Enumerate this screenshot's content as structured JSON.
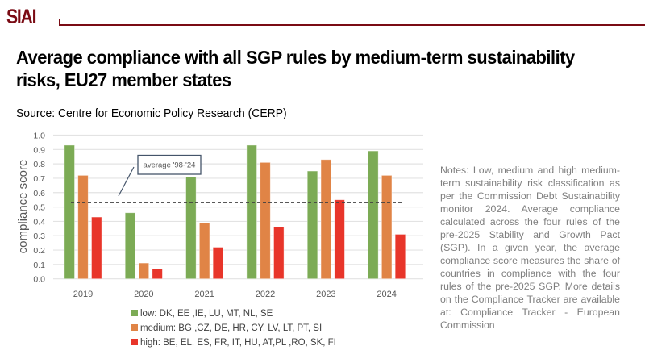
{
  "header": {
    "logo": "SIAI"
  },
  "title": "Average compliance with all SGP rules by medium-term sustainability risks, EU27 member states",
  "source": "Source: Centre for Economic Policy Research (CERP)",
  "notes": "Notes: Low, medium and high medium-term sustainability risk classification as per the Commission Debt Sustainability monitor 2024. Average compliance calculated across the four rules of the pre-2025 Stability and Growth Pact (SGP). In a given year, the average compliance score measures the share of countries in compliance with the four rules of the pre-2025 SGP. More details on the Compliance Tracker are available at: Compliance Tracker - European Commission",
  "chart_data": {
    "type": "bar",
    "title": "",
    "xlabel": "",
    "ylabel": "compliance score",
    "ylim": [
      0,
      1.0
    ],
    "yticks": [
      "0.0",
      "0.1",
      "0.2",
      "0.3",
      "0.4",
      "0.5",
      "0.6",
      "0.7",
      "0.8",
      "0.9",
      "1.0"
    ],
    "grid": true,
    "legend_position": "bottom",
    "categories": [
      "2019",
      "2020",
      "2021",
      "2022",
      "2023",
      "2024"
    ],
    "series": [
      {
        "name": "low: DK, EE ,IE, LU, MT, NL, SE",
        "color": "#7cab55",
        "values": [
          0.93,
          0.46,
          0.71,
          0.93,
          0.75,
          0.89
        ]
      },
      {
        "name": "medium: BG ,CZ, DE, HR, CY, LV, LT, PT, SI",
        "color": "#e08446",
        "values": [
          0.72,
          0.11,
          0.39,
          0.81,
          0.83,
          0.72
        ]
      },
      {
        "name": "high: BE, EL, ES, FR, IT, HU, AT,PL ,RO, SK, FI",
        "color": "#e8352a",
        "values": [
          0.43,
          0.07,
          0.22,
          0.36,
          0.55,
          0.31
        ]
      }
    ],
    "reference_line": {
      "label": "average '98-'24",
      "value": 0.53,
      "style": "dashed"
    }
  }
}
